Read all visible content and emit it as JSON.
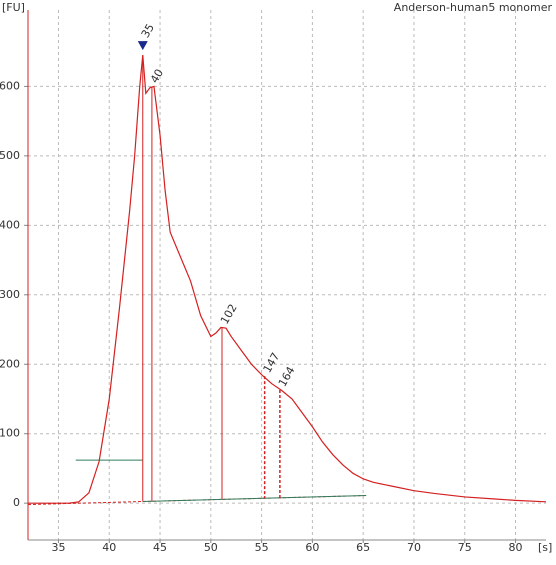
{
  "chart_data": {
    "type": "line",
    "title": "Anderson-human5 monomer",
    "y_label": "[FU]",
    "x_label": "[s]",
    "x": [
      32,
      36,
      37,
      38,
      39,
      40,
      41,
      42,
      42.5,
      43,
      43.3,
      43.6,
      44,
      44.4,
      45,
      45.5,
      46,
      47,
      48,
      49,
      50,
      50.5,
      51,
      51.5,
      52,
      53,
      54,
      55,
      56,
      57,
      58,
      59,
      60,
      61,
      62,
      63,
      64,
      65,
      66,
      67,
      68,
      70,
      72,
      75,
      78,
      80,
      83
    ],
    "series": [
      {
        "name": "Anderson-human5 monomer",
        "color": "#d42020",
        "values": [
          0,
          0,
          2,
          15,
          60,
          150,
          280,
          420,
          500,
          600,
          645,
          590,
          598,
          600,
          530,
          450,
          390,
          355,
          320,
          270,
          240,
          245,
          253,
          252,
          240,
          220,
          200,
          185,
          172,
          162,
          150,
          130,
          110,
          88,
          70,
          55,
          43,
          35,
          30,
          27,
          24,
          18,
          14,
          9,
          6,
          4,
          2
        ]
      }
    ],
    "peaks": [
      {
        "label": "35",
        "x": 43.3,
        "y": 645,
        "color": "#2e8b2e"
      },
      {
        "label": "40",
        "x": 44.2,
        "y": 600,
        "color": "#000000"
      },
      {
        "label": "102",
        "x": 51.1,
        "y": 253,
        "color": "#000000"
      },
      {
        "label": "147",
        "x": 55.3,
        "y": 183,
        "color": "#000000"
      },
      {
        "label": "164",
        "x": 56.8,
        "y": 163,
        "color": "#000000"
      }
    ],
    "baseline": {
      "x": [
        32,
        65.3
      ],
      "y": [
        -2,
        11
      ]
    },
    "marker_line": {
      "x": [
        36.7,
        43.3
      ],
      "y": [
        62,
        62
      ]
    },
    "xlim": [
      32,
      83
    ],
    "ylim": [
      -53,
      710
    ],
    "xticks": [
      35,
      40,
      45,
      50,
      55,
      60,
      65,
      70,
      75,
      80
    ],
    "yticks": [
      0,
      100,
      200,
      300,
      400,
      500,
      600
    ],
    "grid": true
  }
}
